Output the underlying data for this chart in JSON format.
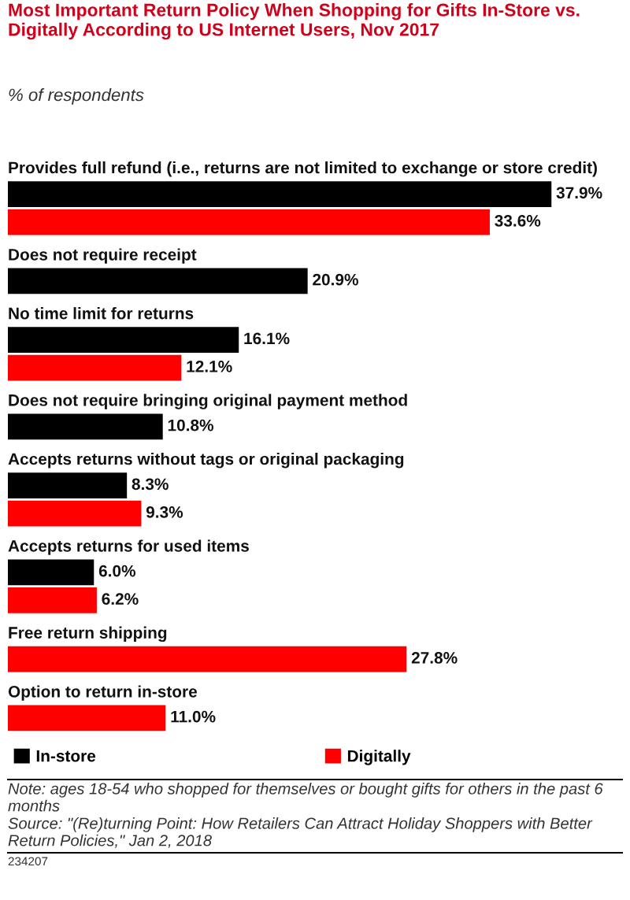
{
  "chart_data": {
    "type": "bar",
    "orientation": "horizontal",
    "title": "Most Important Return Policy When Shopping for Gifts In-Store vs. Digitally According to US Internet Users, Nov 2017",
    "subtitle": "% of respondents",
    "categories": [
      "Provides full refund (i.e., returns are not limited to exchange or store credit)",
      "Does not require receipt",
      "No time limit for returns",
      "Does not require bringing original payment method",
      "Accepts returns without tags or original packaging",
      "Accepts returns for used items",
      "Free return shipping",
      "Option to return in-store"
    ],
    "series": [
      {
        "name": "In-store",
        "color": "#000000",
        "values": [
          37.9,
          20.9,
          16.1,
          10.8,
          8.3,
          6.0,
          null,
          null
        ],
        "value_labels": [
          "37.9%",
          "20.9%",
          "16.1%",
          "10.8%",
          "8.3%",
          "6.0%",
          null,
          null
        ]
      },
      {
        "name": "Digitally",
        "color": "#ff0000",
        "values": [
          33.6,
          null,
          12.1,
          null,
          9.3,
          6.2,
          27.8,
          11.0
        ],
        "value_labels": [
          "33.6%",
          null,
          "12.1%",
          null,
          "9.3%",
          "6.2%",
          "27.8%",
          "11.0%"
        ]
      }
    ],
    "legend": "bottom",
    "annotations": [
      "Note: ages 18-54 who shopped for themselves or bought gifts for others in the past 6 months",
      "Source: \"(Re)turning Point: How Retailers Can Attract Holiday Shoppers with Better Return Policies,\" Jan 2, 2018",
      "234207"
    ]
  }
}
